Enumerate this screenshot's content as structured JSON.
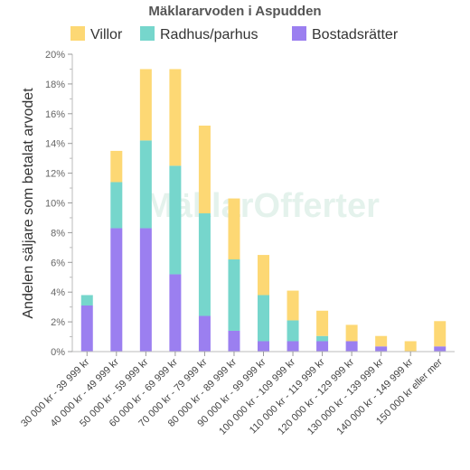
{
  "chart_data": {
    "type": "bar",
    "stacked": true,
    "title": "Mäklararvoden i Aspudden",
    "ylabel": "Andelen säljare som betalat arvodet",
    "xlabel": "",
    "ylim": [
      0,
      20
    ],
    "y_unit": "%",
    "yticks": [
      "0%",
      "2%",
      "4%",
      "6%",
      "8%",
      "10%",
      "12%",
      "14%",
      "16%",
      "18%",
      "20%"
    ],
    "legend_position": "top",
    "grid": false,
    "categories": [
      "30 000 kr - 39 999 kr",
      "40 000 kr - 49 999 kr",
      "50 000 kr - 59 999 kr",
      "60 000 kr - 69 999 kr",
      "70 000 kr - 79 999 kr",
      "80 000 kr - 89 999 kr",
      "90 000 kr - 99 999 kr",
      "100 000 kr - 109 999 kr",
      "110 000 kr - 119 999 kr",
      "120 000 kr - 129 999 kr",
      "130 000 kr - 139 999 kr",
      "140 000 kr - 149 999 kr",
      "150 000 kr eller mer"
    ],
    "series": [
      {
        "name": "Bostadsrätter",
        "color": "#9b7ff0",
        "values": [
          3.1,
          8.3,
          8.3,
          5.2,
          2.4,
          1.4,
          0.7,
          0.7,
          0.7,
          0.7,
          0.35,
          0,
          0.35
        ]
      },
      {
        "name": "Radhus/parhus",
        "color": "#76d6cc",
        "values": [
          0.7,
          3.1,
          5.9,
          7.3,
          6.9,
          4.8,
          3.1,
          1.4,
          0.35,
          0,
          0,
          0,
          0
        ]
      },
      {
        "name": "Villor",
        "color": "#fdd874",
        "values": [
          0,
          2.1,
          4.8,
          6.5,
          5.9,
          4.1,
          2.7,
          2.0,
          1.7,
          1.1,
          0.7,
          0.7,
          1.7
        ]
      }
    ],
    "legend_order": [
      "Villor",
      "Radhus/parhus",
      "Bostadsrätter"
    ],
    "watermark": "MäklarOfferter"
  }
}
